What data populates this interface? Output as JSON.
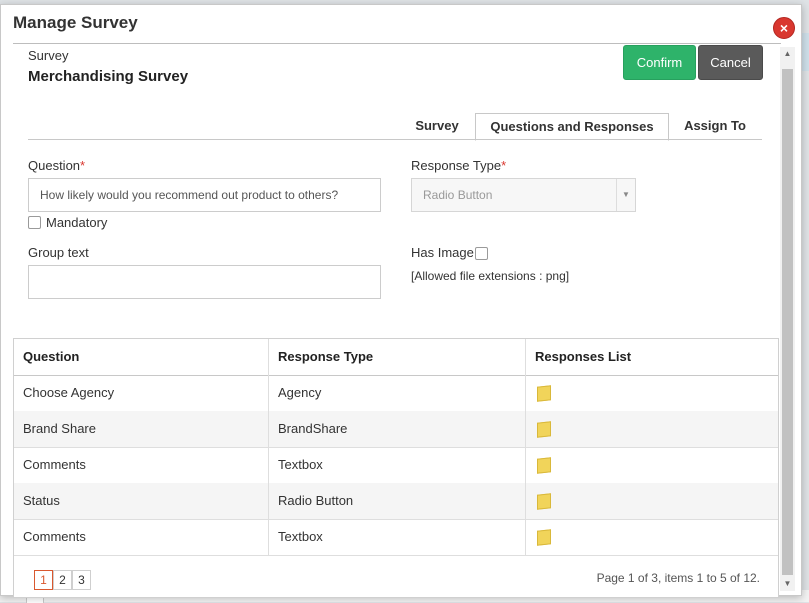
{
  "dialog": {
    "title": "Manage Survey",
    "close_label": "×"
  },
  "survey": {
    "label": "Survey",
    "name": "Merchandising Survey"
  },
  "actions": {
    "confirm": "Confirm",
    "cancel": "Cancel"
  },
  "tabs": [
    {
      "label": "Survey",
      "active": false
    },
    {
      "label": "Questions and Responses",
      "active": true
    },
    {
      "label": "Assign To",
      "active": false
    }
  ],
  "form": {
    "question_label": "Question",
    "question_value": "How likely would you recommend out product to others?",
    "required_mark": "*",
    "mandatory_label": "Mandatory",
    "response_type_label": "Response Type",
    "response_type_value": "Radio Button",
    "group_text_label": "Group text",
    "group_text_value": "",
    "has_image_label": "Has Image",
    "allowed_ext": "[Allowed file extensions : png]"
  },
  "table": {
    "columns": [
      "Question",
      "Response Type",
      "Responses List"
    ],
    "rows": [
      {
        "question": "Choose Agency",
        "response_type": "Agency",
        "icon": "note-icon"
      },
      {
        "question": "Brand Share",
        "response_type": "BrandShare",
        "icon": "note-icon"
      },
      {
        "question": "Comments",
        "response_type": "Textbox",
        "icon": "note-icon"
      },
      {
        "question": "Status",
        "response_type": "Radio Button",
        "icon": "note-icon"
      },
      {
        "question": "Comments",
        "response_type": "Textbox",
        "icon": "note-icon"
      }
    ]
  },
  "pager": {
    "pages": [
      "1",
      "2",
      "3"
    ],
    "current": "1",
    "info": "Page 1 of 3, items 1 to 5 of 12."
  },
  "colors": {
    "confirm": "#2eb36a",
    "cancel": "#5a5a5a",
    "close": "#d9372f",
    "required": "#d9372f"
  }
}
